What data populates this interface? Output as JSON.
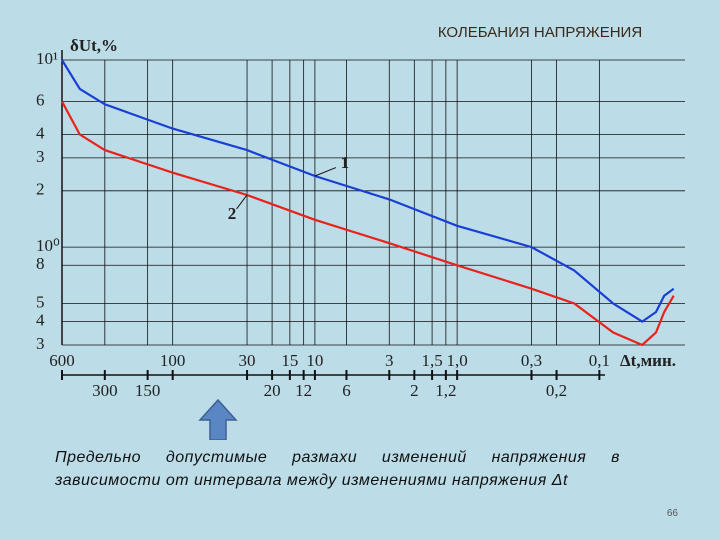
{
  "chart_data": {
    "type": "line",
    "title": "КОЛЕБАНИЯ НАПРЯЖЕНИЯ",
    "y_label": "δUt,%",
    "x_label": "Δt,мин.",
    "xscale": "log",
    "yscale": "log",
    "grid": true,
    "xlim": [
      600,
      0.025
    ],
    "ylim": [
      0.3,
      10
    ],
    "xticks": [
      600,
      300,
      150,
      100,
      30,
      20,
      15,
      12,
      10,
      6,
      3,
      2,
      {
        "value": 1.5,
        "label": "1,5"
      },
      {
        "value": 1.2,
        "label": "1,2"
      },
      {
        "value": 1.0,
        "label": "1,0"
      },
      {
        "value": 0.3,
        "label": "0,3"
      },
      {
        "value": 0.2,
        "label": "0,2"
      },
      {
        "value": 0.1,
        "label": "0,1"
      }
    ],
    "yticks": [
      {
        "value": 10,
        "label": "10¹"
      },
      6,
      4,
      3,
      2,
      {
        "value": 1,
        "label": "10⁰"
      },
      {
        "value": 0.8,
        "label": "8"
      },
      {
        "value": 0.5,
        "label": "5"
      },
      {
        "value": 0.4,
        "label": "4"
      },
      {
        "value": 0.3,
        "label": "3"
      }
    ],
    "x": [
      600,
      450,
      300,
      100,
      30,
      10,
      3,
      1,
      0.3,
      0.15,
      0.08,
      0.05,
      0.04,
      0.035,
      0.03
    ],
    "series": [
      {
        "name": "1",
        "color": "#1a3fd6",
        "values": [
          10,
          7,
          5.8,
          4.3,
          3.3,
          2.4,
          1.8,
          1.3,
          1.0,
          0.75,
          0.5,
          0.4,
          0.45,
          0.55,
          0.6
        ]
      },
      {
        "name": "2",
        "color": "#e8231c",
        "values": [
          6,
          4,
          3.3,
          2.5,
          1.9,
          1.4,
          1.05,
          0.8,
          0.6,
          0.5,
          0.35,
          0.3,
          0.35,
          0.45,
          0.55
        ]
      }
    ]
  },
  "caption": "Предельно допустимые размахи изменений напряжения в зависимости от интервала между изменениями напряжения Δt",
  "page_number": "66"
}
